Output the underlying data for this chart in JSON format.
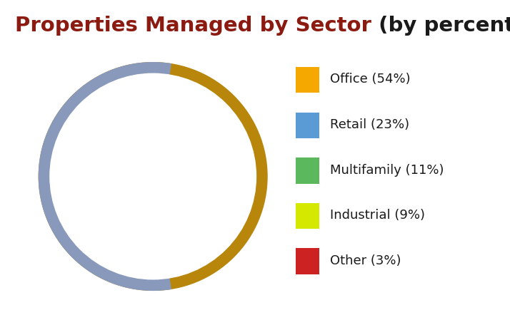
{
  "title_part1": "Properties Managed by Sector",
  "title_part2": " (by percent)",
  "title_color1": "#8B1A10",
  "title_color2": "#1a1a1a",
  "title_fontsize": 21,
  "wedge_sizes": [
    54,
    23,
    11,
    9,
    3
  ],
  "wedge_order": [
    3,
    9,
    11,
    23,
    54
  ],
  "wedge_colors_ordered": [
    "#CC2222",
    "#D4E800",
    "#5CB85C",
    "#5B9BD5",
    "#F5A800"
  ],
  "labels": [
    "Office (54%)",
    "Retail (23%)",
    "Multifamily (11%)",
    "Industrial (9%)",
    "Other (3%)"
  ],
  "legend_colors": [
    "#F5A800",
    "#5B9BD5",
    "#5CB85C",
    "#D4E800",
    "#CC2222"
  ],
  "border_color_right": "#B8860B",
  "border_color_left": "#8899BB",
  "background": "#FFFFFF",
  "legend_fontsize": 13,
  "startangle": 90
}
